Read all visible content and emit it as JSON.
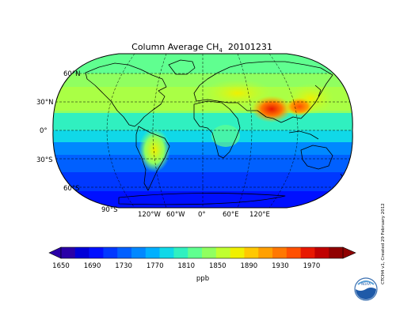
{
  "title": {
    "main": "Column Average CH",
    "subscript": "4",
    "date": "20101231"
  },
  "map": {
    "projection": "robinson",
    "graticule": "dashed",
    "lat_labels": [
      "60°N",
      "30°N",
      "0°",
      "30°S",
      "60°S",
      "90°S"
    ],
    "lon_labels": [
      "120°W",
      "60°W",
      "0°",
      "60°E",
      "120°E"
    ]
  },
  "colorbar": {
    "tick_labels": [
      "1650",
      "1690",
      "1730",
      "1770",
      "1810",
      "1850",
      "1890",
      "1930",
      "1970"
    ],
    "unit": "ppb",
    "min": 1650,
    "max": 2010,
    "step": 20,
    "extend": "both",
    "colors": [
      "#2a00a8",
      "#0000d8",
      "#0010ff",
      "#0038ff",
      "#0060ff",
      "#0088ff",
      "#00b0ff",
      "#10d8e8",
      "#30f0c0",
      "#60ff90",
      "#90ff60",
      "#c0ff30",
      "#f0f000",
      "#ffc800",
      "#ffa000",
      "#ff7800",
      "#ff5000",
      "#e81800",
      "#c00000",
      "#900000"
    ]
  },
  "side_note": "CTCH4 v1, Created 29 February 2012",
  "logo": "NOAA"
}
